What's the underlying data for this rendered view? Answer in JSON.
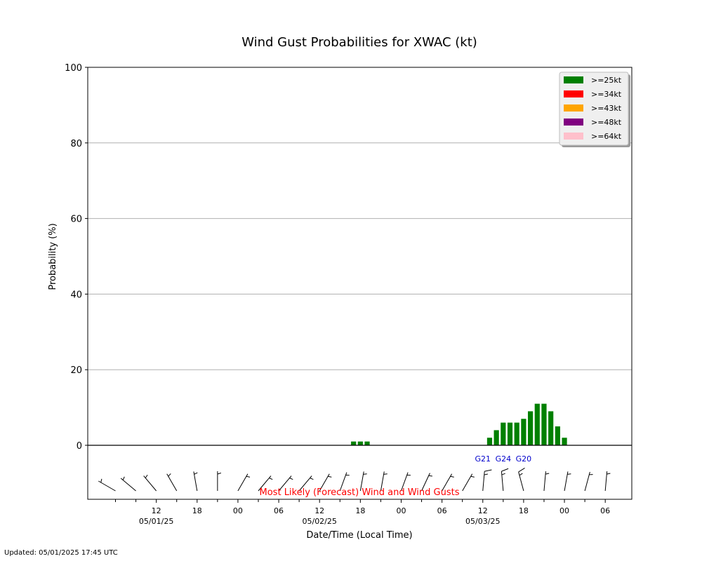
{
  "chart_data": {
    "type": "bar",
    "title": "Wind Gust Probabilities for XWAC (kt)",
    "xlabel": "Date/Time (Local Time)",
    "ylabel": "Probability (%)",
    "ylim": [
      0,
      100
    ],
    "y_ticks": [
      0,
      20,
      40,
      60,
      80,
      100
    ],
    "grid": true,
    "legend_position": "top-right",
    "x_start": "05/01/25 06:00",
    "x_step_hours": 3,
    "x_tick_labels": [
      {
        "hour": 6,
        "label": "12",
        "date": "05/01/25"
      },
      {
        "hour": 12,
        "label": "18",
        "date": ""
      },
      {
        "hour": 18,
        "label": "00",
        "date": ""
      },
      {
        "hour": 24,
        "label": "06",
        "date": ""
      },
      {
        "hour": 30,
        "label": "12",
        "date": "05/02/25"
      },
      {
        "hour": 36,
        "label": "18",
        "date": ""
      },
      {
        "hour": 42,
        "label": "00",
        "date": ""
      },
      {
        "hour": 48,
        "label": "06",
        "date": ""
      },
      {
        "hour": 54,
        "label": "12",
        "date": "05/03/25"
      },
      {
        "hour": 60,
        "label": "18",
        "date": ""
      },
      {
        "hour": 66,
        "label": "00",
        "date": ""
      },
      {
        "hour": 72,
        "label": "06",
        "date": ""
      }
    ],
    "series": [
      {
        "name": ">=25kt",
        "color": "#008000",
        "points": [
          {
            "hour": 35,
            "value": 1
          },
          {
            "hour": 36,
            "value": 1
          },
          {
            "hour": 37,
            "value": 1
          },
          {
            "hour": 55,
            "value": 2
          },
          {
            "hour": 56,
            "value": 4
          },
          {
            "hour": 57,
            "value": 6
          },
          {
            "hour": 58,
            "value": 6
          },
          {
            "hour": 59,
            "value": 6
          },
          {
            "hour": 60,
            "value": 7
          },
          {
            "hour": 61,
            "value": 9
          },
          {
            "hour": 62,
            "value": 11
          },
          {
            "hour": 63,
            "value": 11
          },
          {
            "hour": 64,
            "value": 9
          },
          {
            "hour": 65,
            "value": 5
          },
          {
            "hour": 66,
            "value": 2
          }
        ]
      },
      {
        "name": ">=34kt",
        "color": "#ff0000",
        "points": []
      },
      {
        "name": ">=43kt",
        "color": "#ffa500",
        "points": []
      },
      {
        "name": ">=48kt",
        "color": "#800080",
        "points": []
      },
      {
        "name": ">=64kt",
        "color": "#ffc0cb",
        "points": []
      }
    ],
    "gust_labels": [
      {
        "hour": 54,
        "label": "G21"
      },
      {
        "hour": 57,
        "label": "G24"
      },
      {
        "hour": 60,
        "label": "G20"
      }
    ],
    "wind_caption": "Most Likely (Forecast) Wind and Wind Gusts",
    "wind_caption_color": "#ff0000",
    "gust_label_color": "#0000cc",
    "wind_barbs": [
      {
        "hour": 0,
        "dir": 300,
        "speed": 5
      },
      {
        "hour": 3,
        "dir": 310,
        "speed": 5
      },
      {
        "hour": 6,
        "dir": 320,
        "speed": 5
      },
      {
        "hour": 9,
        "dir": 330,
        "speed": 5
      },
      {
        "hour": 12,
        "dir": 350,
        "speed": 5
      },
      {
        "hour": 15,
        "dir": 0,
        "speed": 5
      },
      {
        "hour": 18,
        "dir": 30,
        "speed": 5
      },
      {
        "hour": 21,
        "dir": 40,
        "speed": 5
      },
      {
        "hour": 24,
        "dir": 40,
        "speed": 5
      },
      {
        "hour": 27,
        "dir": 40,
        "speed": 5
      },
      {
        "hour": 30,
        "dir": 30,
        "speed": 5
      },
      {
        "hour": 33,
        "dir": 20,
        "speed": 5
      },
      {
        "hour": 36,
        "dir": 10,
        "speed": 5
      },
      {
        "hour": 39,
        "dir": 10,
        "speed": 5
      },
      {
        "hour": 42,
        "dir": 20,
        "speed": 5
      },
      {
        "hour": 45,
        "dir": 25,
        "speed": 5
      },
      {
        "hour": 48,
        "dir": 30,
        "speed": 5
      },
      {
        "hour": 51,
        "dir": 30,
        "speed": 5
      },
      {
        "hour": 54,
        "dir": 5,
        "speed": 10
      },
      {
        "hour": 57,
        "dir": 355,
        "speed": 10
      },
      {
        "hour": 60,
        "dir": 345,
        "speed": 10
      },
      {
        "hour": 63,
        "dir": 5,
        "speed": 5
      },
      {
        "hour": 66,
        "dir": 10,
        "speed": 5
      },
      {
        "hour": 69,
        "dir": 15,
        "speed": 5
      },
      {
        "hour": 72,
        "dir": 5,
        "speed": 5
      }
    ]
  },
  "footer": {
    "updated": "Updated: 05/01/2025 17:45 UTC"
  }
}
